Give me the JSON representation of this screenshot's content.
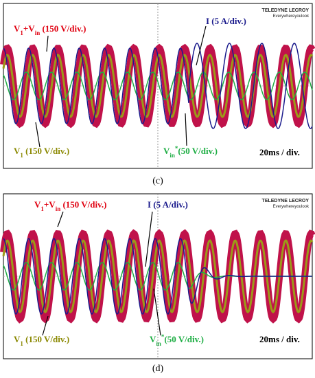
{
  "panels": [
    {
      "caption": "(c)",
      "brand": {
        "name": "TELEDYNE LECROY",
        "slogan": "Everywhereyoulook"
      },
      "labels": {
        "sum": [
          "V",
          "1",
          "+V",
          "in",
          " (150 V/div.)"
        ],
        "current": "I (5 A/div.)",
        "v1": [
          "V",
          "1",
          " (150 V/div.)"
        ],
        "vin": [
          "V",
          "in",
          "*",
          "(50 V/div.)"
        ],
        "time": "20ms / div."
      }
    },
    {
      "caption": "(d)",
      "brand": {
        "name": "TELEDYNE LECROY",
        "slogan": "Everywhereyoulook"
      },
      "labels": {
        "sum": [
          "V",
          "1",
          "+V",
          "in",
          " (150 V/div.)"
        ],
        "current": "I (5 A/div.)",
        "v1": [
          "V",
          "1",
          " (150 V/div.)"
        ],
        "vin": [
          "V",
          "in",
          "*",
          "(50 V/div.)"
        ],
        "time": "20ms / div."
      }
    }
  ]
}
